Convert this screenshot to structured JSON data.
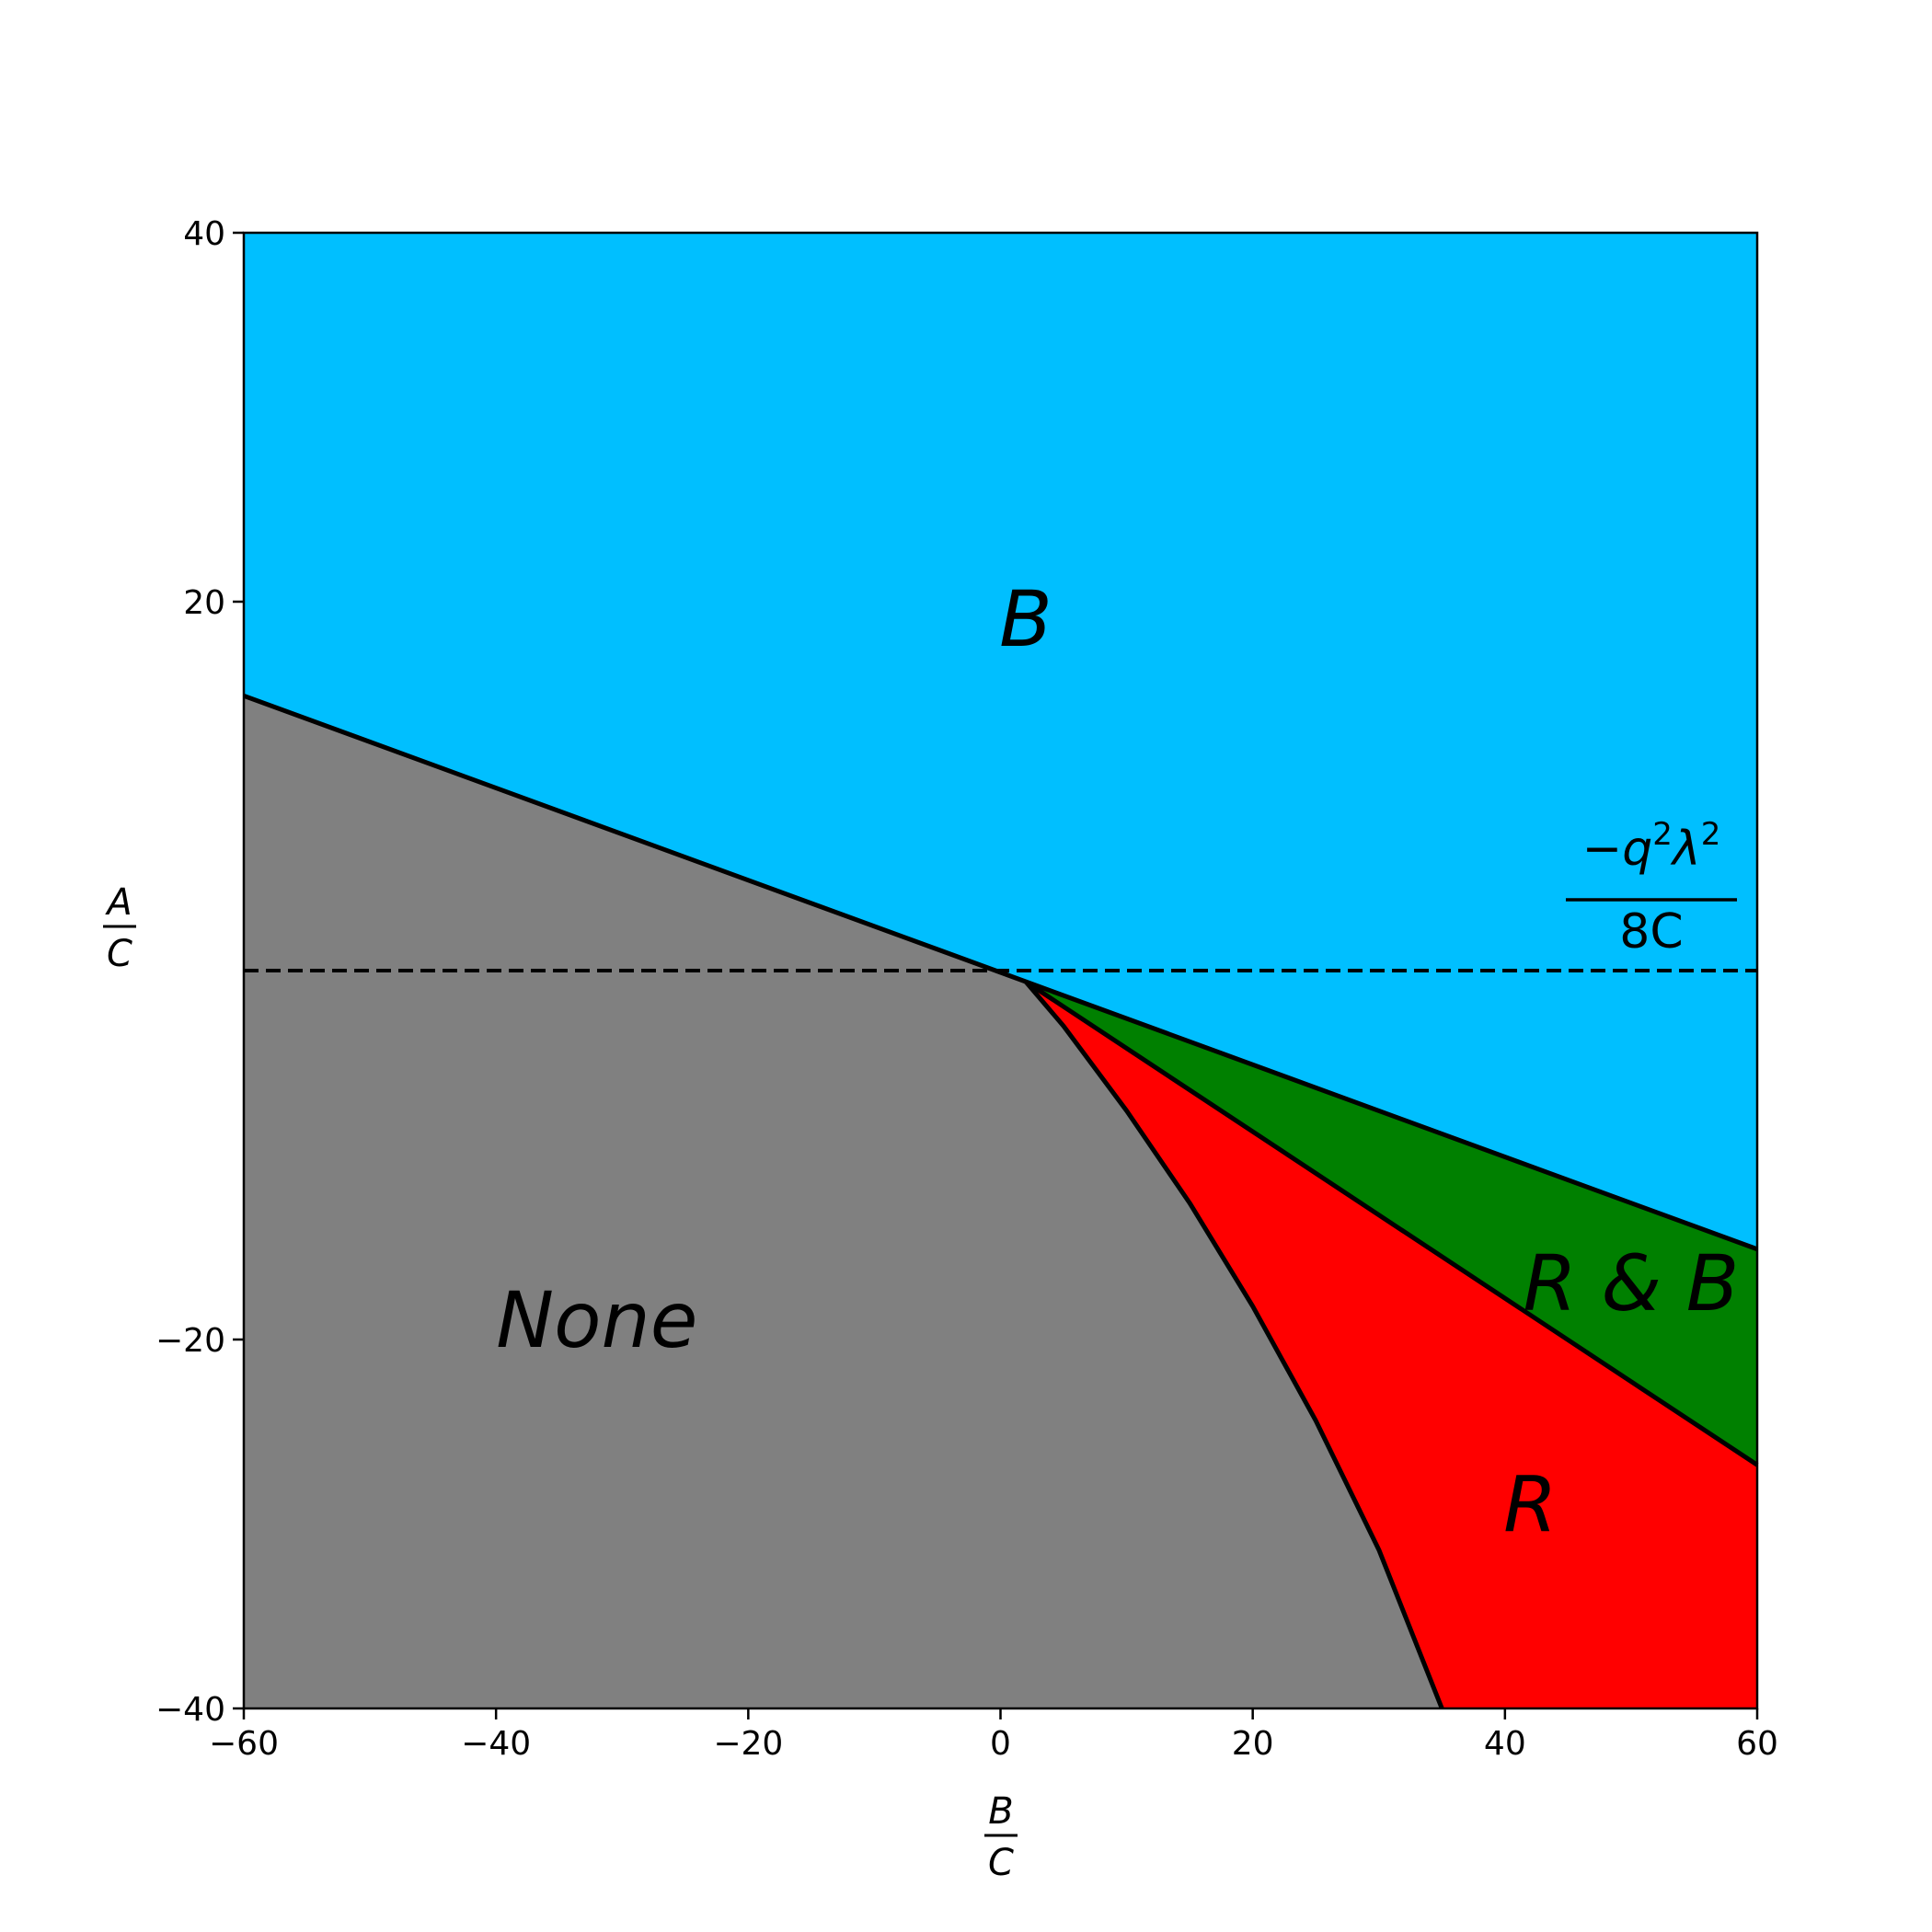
{
  "chart_data": {
    "type": "area",
    "title": "",
    "xlabel": {
      "numerator": "B",
      "denominator": "C"
    },
    "ylabel": {
      "numerator": "A",
      "denominator": "C"
    },
    "xlim": [
      -60,
      60
    ],
    "ylim": [
      -40,
      40
    ],
    "xticks": [
      -60,
      -40,
      -20,
      0,
      20,
      40,
      60
    ],
    "yticks": [
      -40,
      -20,
      20,
      40
    ],
    "xtick_labels": [
      "−60",
      "−40",
      "−20",
      "0",
      "20",
      "40",
      "60"
    ],
    "ytick_labels": [
      "−40",
      "−20",
      "20",
      "40"
    ],
    "grid": false,
    "colors": {
      "B": "#00bfff",
      "None": "#808080",
      "R & B": "#008000",
      "R": "#ff0000",
      "boundary": "#000000"
    },
    "regions": [
      {
        "label": "B",
        "color": "#00bfff",
        "label_at": [
          2,
          19
        ]
      },
      {
        "label": "None",
        "color": "#808080",
        "label_at": [
          -32,
          -19
        ]
      },
      {
        "label": "R & B",
        "color": "#008000",
        "label_at": [
          50,
          -17
        ]
      },
      {
        "label": "R",
        "color": "#ff0000",
        "label_at": [
          42,
          -29
        ]
      }
    ],
    "boundaries": [
      {
        "name": "upper-line",
        "x": [
          -60,
          2,
          60
        ],
        "y": [
          14.9,
          -0.6,
          -15.1
        ]
      },
      {
        "name": "middle-line",
        "x": [
          2,
          60
        ],
        "y": [
          -0.6,
          -26.8
        ]
      },
      {
        "name": "lower-curve",
        "x": [
          2,
          5,
          10,
          15,
          20,
          25,
          30,
          35
        ],
        "y": [
          -0.6,
          -3,
          -7.6,
          -12.6,
          -18.2,
          -24.4,
          -31.4,
          -40
        ]
      }
    ],
    "reference_line": {
      "y": 0,
      "style": "dashed",
      "label": {
        "numerator": "−q²λ²",
        "denominator": "8C"
      },
      "label_parts": {
        "minus": "−",
        "q": "q",
        "exp1": "2",
        "lambda": "λ",
        "exp2": "2",
        "denominator": "8C"
      }
    }
  }
}
